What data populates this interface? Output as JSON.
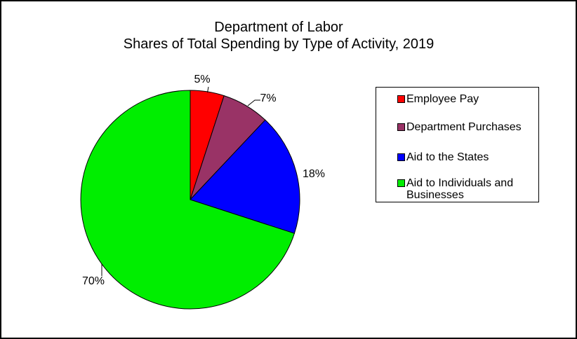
{
  "window": {
    "background": "#FFFFFF",
    "frame_border_color": "#000000"
  },
  "chart_data": {
    "type": "pie",
    "title": "Department of Labor\nShares of Total Spending by Type of Activity, 2019",
    "title_lines": [
      "Department of Labor",
      "Shares of Total Spending by Type of Activity, 2019"
    ],
    "direction": "clockwise",
    "start_angle_deg": 0,
    "outline_color": "#000000",
    "legend_position": "right",
    "legend_border_color": "#000000",
    "slices": [
      {
        "name": "Employee Pay",
        "value": 5,
        "label": "5%",
        "color": "#FF0000"
      },
      {
        "name": "Department Purchases",
        "value": 7,
        "label": "7%",
        "color": "#993366"
      },
      {
        "name": "Aid to the States",
        "value": 18,
        "label": "18%",
        "color": "#0000FF"
      },
      {
        "name": "Aid to Individuals and Businesses",
        "value": 70,
        "label": "70%",
        "color": "#00EE00"
      }
    ]
  }
}
